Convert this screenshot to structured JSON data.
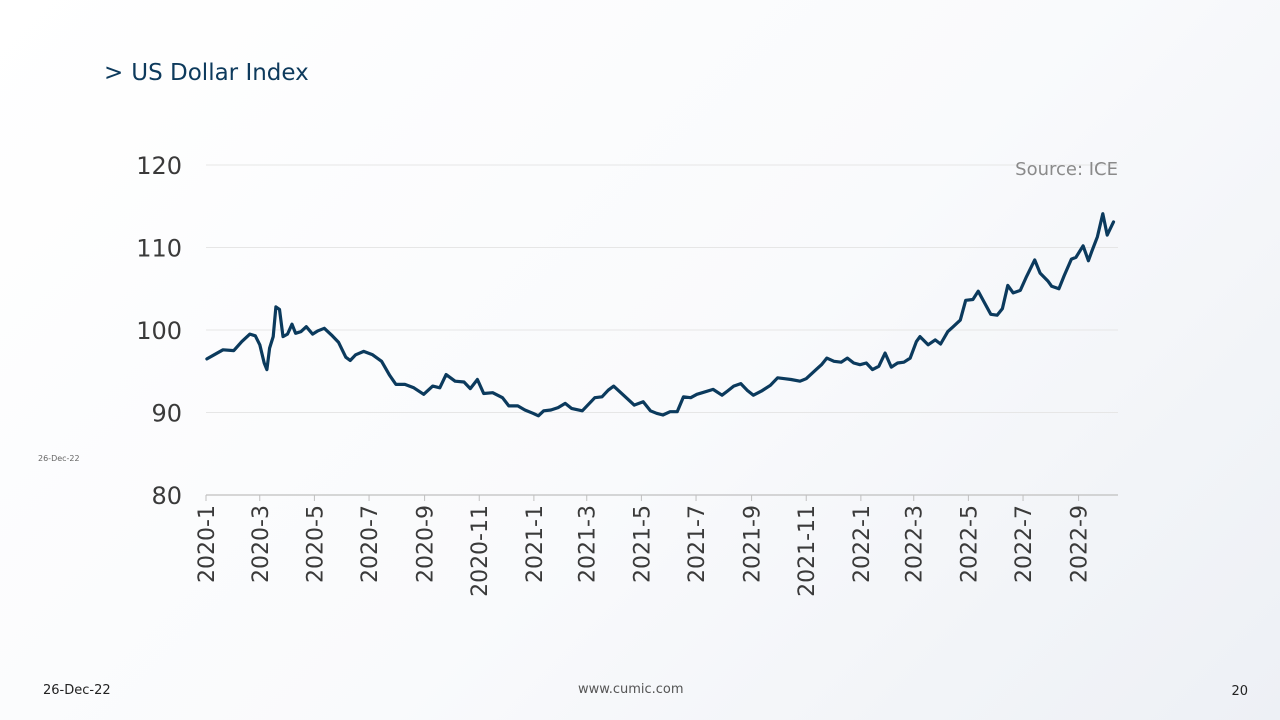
{
  "slide": {
    "title_marker": ">",
    "title": "US Dollar Index",
    "side_date": "26-Dec-22",
    "footer_date": "26-Dec-22",
    "footer_url": "www.cumic.com",
    "page_number": "20"
  },
  "colors": {
    "line": "#0b3a5d",
    "title": "#0d3a5c",
    "grid": "#e6e6e6",
    "axis": "#bfbfbf",
    "tick_text": "#3a3a3a"
  },
  "chart_data": {
    "type": "line",
    "title": "",
    "source": "Source: ICE",
    "xlabel": "",
    "ylabel": "",
    "ylim": [
      80,
      120
    ],
    "yticks": [
      80,
      90,
      100,
      110,
      120
    ],
    "xlim": [
      "2020-01-01",
      "2022-10-15"
    ],
    "xticks": [
      {
        "date": "2020-01-01",
        "label": "2020-1"
      },
      {
        "date": "2020-03-01",
        "label": "2020-3"
      },
      {
        "date": "2020-05-01",
        "label": "2020-5"
      },
      {
        "date": "2020-07-01",
        "label": "2020-7"
      },
      {
        "date": "2020-09-01",
        "label": "2020-9"
      },
      {
        "date": "2020-11-01",
        "label": "2020-11"
      },
      {
        "date": "2021-01-01",
        "label": "2021-1"
      },
      {
        "date": "2021-03-01",
        "label": "2021-3"
      },
      {
        "date": "2021-05-01",
        "label": "2021-5"
      },
      {
        "date": "2021-07-01",
        "label": "2021-7"
      },
      {
        "date": "2021-09-01",
        "label": "2021-9"
      },
      {
        "date": "2021-11-01",
        "label": "2021-11"
      },
      {
        "date": "2022-01-01",
        "label": "2022-1"
      },
      {
        "date": "2022-03-01",
        "label": "2022-3"
      },
      {
        "date": "2022-05-01",
        "label": "2022-5"
      },
      {
        "date": "2022-07-01",
        "label": "2022-7"
      },
      {
        "date": "2022-09-01",
        "label": "2022-9"
      }
    ],
    "grid": true,
    "series": [
      {
        "name": "",
        "points": [
          [
            "2020-01-02",
            96.5
          ],
          [
            "2020-01-10",
            97.0
          ],
          [
            "2020-01-20",
            97.6
          ],
          [
            "2020-02-01",
            97.5
          ],
          [
            "2020-02-10",
            98.6
          ],
          [
            "2020-02-19",
            99.5
          ],
          [
            "2020-02-25",
            99.3
          ],
          [
            "2020-03-01",
            98.2
          ],
          [
            "2020-03-06",
            96.0
          ],
          [
            "2020-03-09",
            95.2
          ],
          [
            "2020-03-12",
            97.8
          ],
          [
            "2020-03-16",
            99.2
          ],
          [
            "2020-03-19",
            102.8
          ],
          [
            "2020-03-23",
            102.5
          ],
          [
            "2020-03-27",
            99.2
          ],
          [
            "2020-04-01",
            99.5
          ],
          [
            "2020-04-06",
            100.7
          ],
          [
            "2020-04-10",
            99.6
          ],
          [
            "2020-04-16",
            99.8
          ],
          [
            "2020-04-22",
            100.4
          ],
          [
            "2020-04-29",
            99.5
          ],
          [
            "2020-05-05",
            99.9
          ],
          [
            "2020-05-12",
            100.2
          ],
          [
            "2020-05-20",
            99.4
          ],
          [
            "2020-05-28",
            98.5
          ],
          [
            "2020-06-05",
            96.7
          ],
          [
            "2020-06-10",
            96.3
          ],
          [
            "2020-06-16",
            97.0
          ],
          [
            "2020-06-25",
            97.4
          ],
          [
            "2020-07-05",
            97.0
          ],
          [
            "2020-07-15",
            96.2
          ],
          [
            "2020-07-24",
            94.5
          ],
          [
            "2020-07-31",
            93.4
          ],
          [
            "2020-08-10",
            93.4
          ],
          [
            "2020-08-20",
            93.0
          ],
          [
            "2020-08-31",
            92.2
          ],
          [
            "2020-09-10",
            93.2
          ],
          [
            "2020-09-18",
            93.0
          ],
          [
            "2020-09-25",
            94.6
          ],
          [
            "2020-10-05",
            93.8
          ],
          [
            "2020-10-15",
            93.7
          ],
          [
            "2020-10-22",
            92.9
          ],
          [
            "2020-10-30",
            94.0
          ],
          [
            "2020-11-06",
            92.3
          ],
          [
            "2020-11-16",
            92.4
          ],
          [
            "2020-11-27",
            91.8
          ],
          [
            "2020-12-04",
            90.8
          ],
          [
            "2020-12-14",
            90.8
          ],
          [
            "2020-12-22",
            90.3
          ],
          [
            "2020-12-31",
            89.9
          ],
          [
            "2021-01-06",
            89.6
          ],
          [
            "2021-01-12",
            90.2
          ],
          [
            "2021-01-20",
            90.3
          ],
          [
            "2021-01-28",
            90.6
          ],
          [
            "2021-02-05",
            91.1
          ],
          [
            "2021-02-12",
            90.5
          ],
          [
            "2021-02-24",
            90.2
          ],
          [
            "2021-03-03",
            91.0
          ],
          [
            "2021-03-10",
            91.8
          ],
          [
            "2021-03-18",
            91.9
          ],
          [
            "2021-03-25",
            92.7
          ],
          [
            "2021-03-31",
            93.2
          ],
          [
            "2021-04-08",
            92.4
          ],
          [
            "2021-04-16",
            91.6
          ],
          [
            "2021-04-23",
            90.9
          ],
          [
            "2021-05-03",
            91.3
          ],
          [
            "2021-05-11",
            90.2
          ],
          [
            "2021-05-18",
            89.9
          ],
          [
            "2021-05-25",
            89.7
          ],
          [
            "2021-06-02",
            90.1
          ],
          [
            "2021-06-10",
            90.1
          ],
          [
            "2021-06-17",
            91.9
          ],
          [
            "2021-06-25",
            91.8
          ],
          [
            "2021-07-02",
            92.2
          ],
          [
            "2021-07-08",
            92.4
          ],
          [
            "2021-07-20",
            92.8
          ],
          [
            "2021-07-30",
            92.1
          ],
          [
            "2021-08-05",
            92.6
          ],
          [
            "2021-08-12",
            93.2
          ],
          [
            "2021-08-20",
            93.5
          ],
          [
            "2021-08-27",
            92.7
          ],
          [
            "2021-09-03",
            92.1
          ],
          [
            "2021-09-12",
            92.6
          ],
          [
            "2021-09-22",
            93.3
          ],
          [
            "2021-09-30",
            94.2
          ],
          [
            "2021-10-08",
            94.1
          ],
          [
            "2021-10-15",
            94.0
          ],
          [
            "2021-10-25",
            93.8
          ],
          [
            "2021-11-01",
            94.1
          ],
          [
            "2021-11-12",
            95.2
          ],
          [
            "2021-11-18",
            95.8
          ],
          [
            "2021-11-24",
            96.6
          ],
          [
            "2021-12-02",
            96.2
          ],
          [
            "2021-12-10",
            96.1
          ],
          [
            "2021-12-17",
            96.6
          ],
          [
            "2021-12-24",
            96.0
          ],
          [
            "2021-12-31",
            95.8
          ],
          [
            "2022-01-07",
            96.0
          ],
          [
            "2022-01-14",
            95.2
          ],
          [
            "2022-01-21",
            95.6
          ],
          [
            "2022-01-28",
            97.2
          ],
          [
            "2022-02-04",
            95.5
          ],
          [
            "2022-02-11",
            96.0
          ],
          [
            "2022-02-18",
            96.1
          ],
          [
            "2022-02-25",
            96.6
          ],
          [
            "2022-03-04",
            98.6
          ],
          [
            "2022-03-08",
            99.2
          ],
          [
            "2022-03-17",
            98.2
          ],
          [
            "2022-03-25",
            98.8
          ],
          [
            "2022-03-31",
            98.3
          ],
          [
            "2022-04-08",
            99.8
          ],
          [
            "2022-04-14",
            100.4
          ],
          [
            "2022-04-22",
            101.2
          ],
          [
            "2022-04-28",
            103.6
          ],
          [
            "2022-05-06",
            103.7
          ],
          [
            "2022-05-12",
            104.7
          ],
          [
            "2022-05-18",
            103.5
          ],
          [
            "2022-05-26",
            101.9
          ],
          [
            "2022-06-02",
            101.8
          ],
          [
            "2022-06-08",
            102.6
          ],
          [
            "2022-06-14",
            105.4
          ],
          [
            "2022-06-20",
            104.5
          ],
          [
            "2022-06-28",
            104.8
          ],
          [
            "2022-07-05",
            106.5
          ],
          [
            "2022-07-14",
            108.5
          ],
          [
            "2022-07-20",
            106.9
          ],
          [
            "2022-07-29",
            105.9
          ],
          [
            "2022-08-02",
            105.3
          ],
          [
            "2022-08-10",
            105.0
          ],
          [
            "2022-08-16",
            106.6
          ],
          [
            "2022-08-24",
            108.6
          ],
          [
            "2022-08-29",
            108.8
          ],
          [
            "2022-09-06",
            110.2
          ],
          [
            "2022-09-12",
            108.4
          ],
          [
            "2022-09-16",
            109.6
          ],
          [
            "2022-09-22",
            111.3
          ],
          [
            "2022-09-28",
            114.1
          ],
          [
            "2022-10-03",
            111.5
          ],
          [
            "2022-10-10",
            113.1
          ]
        ]
      }
    ]
  }
}
